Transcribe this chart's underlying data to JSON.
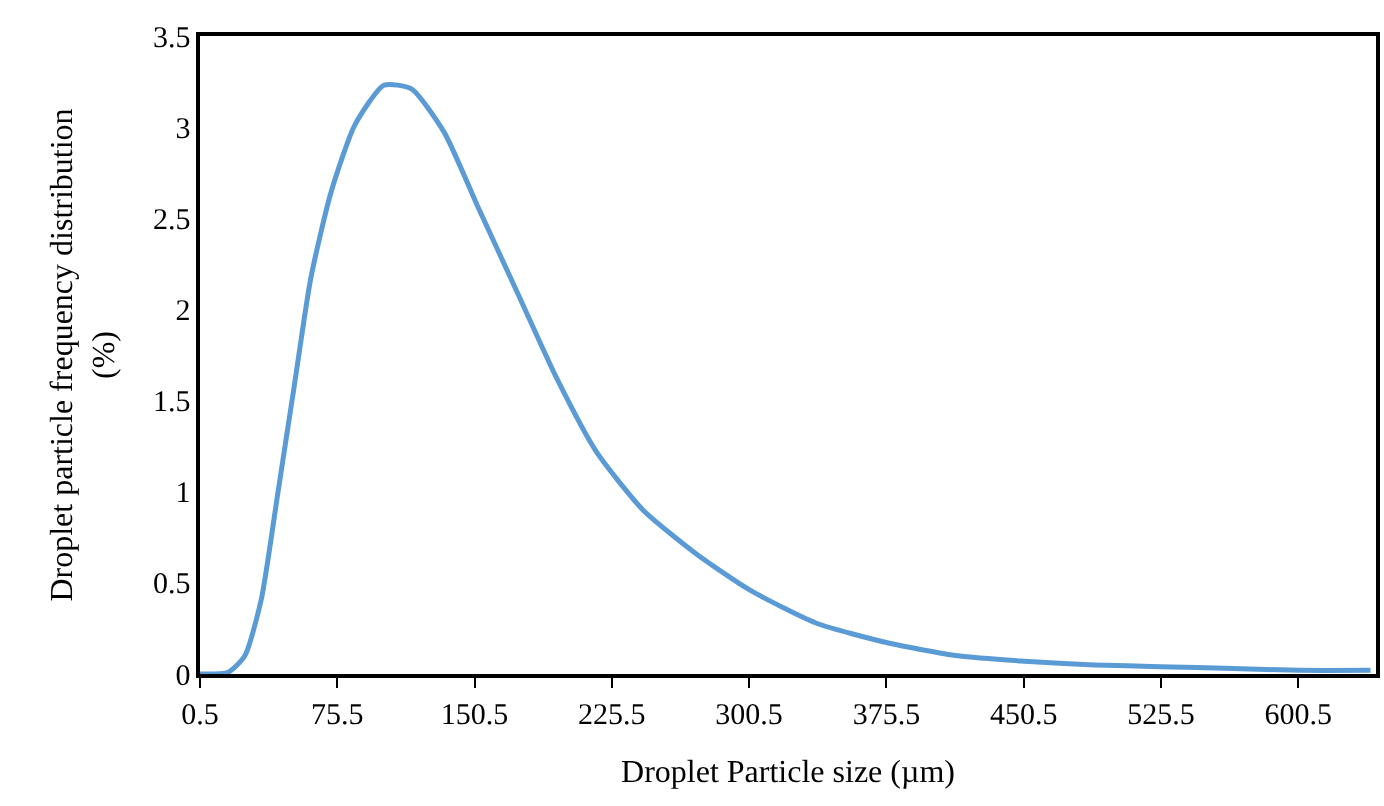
{
  "chart_data": {
    "type": "line",
    "xlabel": "Droplet Particle size (µm)",
    "ylabel": "Droplet particle frequency distribution\n(%)",
    "xlim": [
      0.5,
      643
    ],
    "ylim": [
      0,
      3.5
    ],
    "xticks": [
      0.5,
      75.5,
      150.5,
      225.5,
      300.5,
      375.5,
      450.5,
      525.5,
      600.5
    ],
    "yticks": [
      0,
      0.5,
      1,
      1.5,
      2,
      2.5,
      3,
      3.5
    ],
    "marker": "none",
    "line_style": "solid",
    "series": [
      {
        "color": "#5b9bd5",
        "x": [
          0.5,
          16,
          25,
          34,
          43,
          52,
          61,
          72,
          85,
          101,
          116,
          134,
          152,
          174,
          195.5,
          217,
          242.5,
          271.5,
          301,
          337,
          376.6,
          414.6,
          451,
          489,
          525,
          565,
          601,
          640
        ],
        "values": [
          0,
          0.01,
          0.1,
          0.41,
          0.99,
          1.58,
          2.17,
          2.64,
          3.01,
          3.23,
          3.21,
          2.97,
          2.57,
          2.09,
          1.62,
          1.22,
          0.9,
          0.66,
          0.46,
          0.28,
          0.17,
          0.1,
          0.07,
          0.05,
          0.04,
          0.03,
          0.02,
          0.02
        ]
      }
    ]
  }
}
